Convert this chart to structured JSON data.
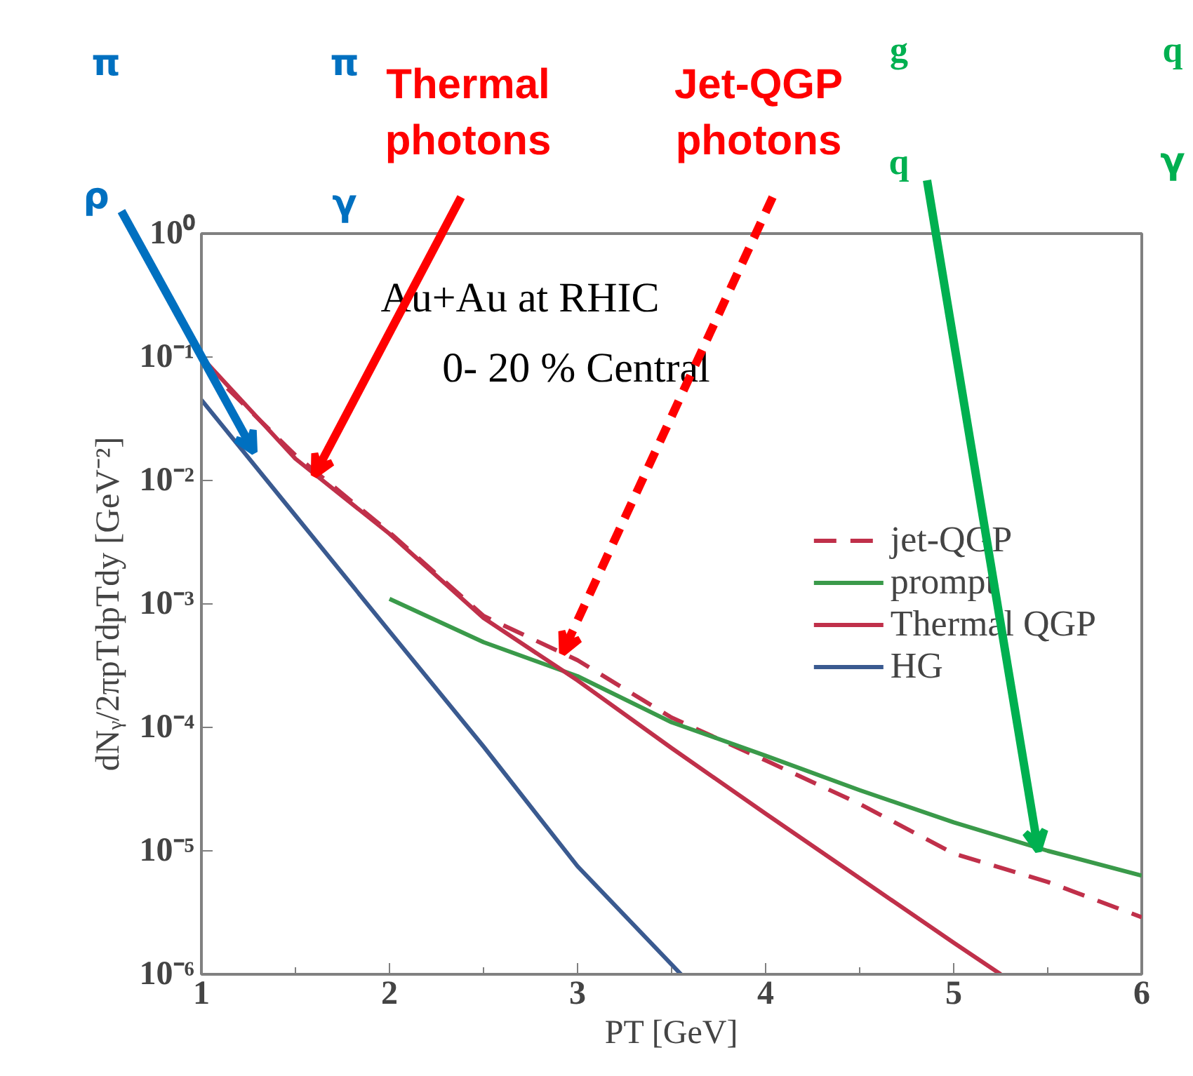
{
  "chart_data": {
    "type": "line",
    "xlabel": "PT [GeV]",
    "ylabel": "dNᵧ/2πpTdpTdy [GeV⁻²]",
    "log": "y",
    "xlim": [
      1,
      6
    ],
    "xticks": [
      1,
      2,
      3,
      4,
      5,
      6
    ],
    "ylim": [
      1e-06,
      1
    ],
    "yticks": [
      {
        "value": 1,
        "label": "10⁰"
      },
      {
        "value": 0.1,
        "label": "10⁻¹"
      },
      {
        "value": 0.01,
        "label": "10⁻²"
      },
      {
        "value": 0.001,
        "label": "10⁻³"
      },
      {
        "value": 0.0001,
        "label": "10⁻⁴"
      },
      {
        "value": 1e-05,
        "label": "10⁻⁵"
      },
      {
        "value": 1e-06,
        "label": "10⁻⁶"
      }
    ],
    "grid": false,
    "legend": "right",
    "series": [
      {
        "name": "jet-QGP",
        "color": "#c0304a",
        "line_style": "dashed",
        "x": [
          1,
          1.5,
          2,
          2.5,
          3,
          3.5,
          4,
          4.5,
          5,
          5.5,
          6
        ],
        "values": [
          0.09,
          0.016,
          0.0038,
          0.0008,
          0.00035,
          0.00012,
          5.4e-05,
          2.4e-05,
          9.5e-06,
          5.6e-06,
          2.9e-06
        ]
      },
      {
        "name": "prompt",
        "color": "#3a9a4a",
        "x": [
          2,
          2.5,
          3,
          3.5,
          4,
          4.5,
          5,
          5.5,
          6
        ],
        "values": [
          0.0011,
          0.00049,
          0.00026,
          0.00011,
          5.9e-05,
          3.1e-05,
          1.7e-05,
          1e-05,
          6.3e-06
        ]
      },
      {
        "name": "Thermal QGP",
        "color": "#c0304a",
        "x": [
          1,
          1.5,
          2,
          2.5,
          3,
          3.5,
          4,
          4.5,
          5,
          5.25
        ],
        "values": [
          0.1,
          0.015,
          0.0037,
          0.00077,
          0.00024,
          6.8e-05,
          2e-05,
          6e-06,
          1.8e-06,
          1e-06
        ]
      },
      {
        "name": "HG",
        "color": "#3a5a90",
        "x": [
          1,
          1.5,
          2,
          2.5,
          3,
          3.55
        ],
        "values": [
          0.045,
          0.0052,
          0.0006,
          7e-05,
          7.5e-06,
          1e-06
        ]
      }
    ],
    "annotations": [
      "Au+Au at RHIC",
      "0- 20 % Central",
      {
        "text": "Thermal photons",
        "x": 1.6,
        "y": 0.011
      },
      {
        "text": "Jet-QGP photons",
        "x": 2.92,
        "y": 0.0004
      },
      {
        "text": "ρ",
        "x": 1.28,
        "y": 0.017
      },
      "π",
      "π",
      "γ",
      "g",
      "q",
      {
        "text": "q",
        "x": 5.45,
        "y": 1e-05
      },
      "γ"
    ]
  }
}
